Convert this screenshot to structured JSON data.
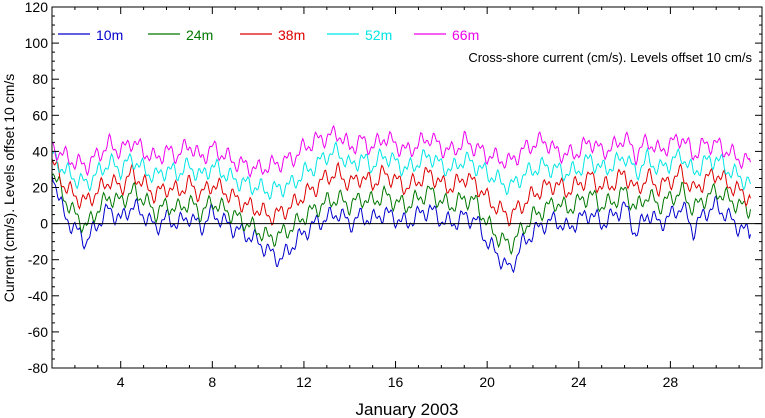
{
  "chart_data": {
    "type": "line",
    "title": "Cross-shore current (cm/s). Levels offset 10 cm/s",
    "xlabel": "January 2003",
    "ylabel": "Current (cm/s). Levels offset 10 cm/s",
    "xlim": [
      1,
      32
    ],
    "ylim": [
      -80,
      120
    ],
    "x_ticks": [
      4,
      8,
      12,
      16,
      20,
      24,
      28
    ],
    "y_ticks": [
      -80,
      -60,
      -40,
      -20,
      0,
      20,
      40,
      60,
      80,
      100,
      120
    ],
    "reference_line": 0,
    "grid": false,
    "legend": "top-left, single row",
    "series": [
      {
        "name": "10m",
        "color": "#0000cc",
        "offset": 0,
        "x": [
          1,
          1.5,
          2,
          2.5,
          3,
          3.5,
          4,
          4.5,
          5,
          5.5,
          6,
          6.5,
          7,
          7.5,
          8,
          8.5,
          9,
          9.5,
          10,
          10.5,
          11,
          11.5,
          12,
          12.5,
          13,
          13.5,
          14,
          14.5,
          15,
          15.5,
          16,
          16.5,
          17,
          17.5,
          18,
          18.5,
          19,
          19.5,
          20,
          20.5,
          21,
          21.5,
          22,
          22.5,
          23,
          23.5,
          24,
          24.5,
          25,
          25.5,
          26,
          26.5,
          27,
          27.5,
          28,
          28.5,
          29,
          29.5,
          30,
          30.5,
          31,
          31.5
        ],
        "values": [
          30,
          5,
          -3,
          -10,
          0,
          8,
          2,
          10,
          5,
          -2,
          3,
          0,
          4,
          -2,
          6,
          1,
          -3,
          -6,
          -10,
          -16,
          -20,
          -12,
          -5,
          0,
          3,
          6,
          0,
          4,
          2,
          6,
          3,
          0,
          5,
          8,
          2,
          0,
          4,
          2,
          -10,
          -18,
          -26,
          -12,
          -5,
          0,
          2,
          -3,
          2,
          6,
          0,
          4,
          10,
          -6,
          6,
          0,
          4,
          10,
          -4,
          6,
          10,
          4,
          -2,
          -6
        ]
      },
      {
        "name": "24m",
        "color": "#007700",
        "offset": 10,
        "x": [
          1,
          1.5,
          2,
          2.5,
          3,
          3.5,
          4,
          4.5,
          5,
          5.5,
          6,
          6.5,
          7,
          7.5,
          8,
          8.5,
          9,
          9.5,
          10,
          10.5,
          11,
          11.5,
          12,
          12.5,
          13,
          13.5,
          14,
          14.5,
          15,
          15.5,
          16,
          16.5,
          17,
          17.5,
          18,
          18.5,
          19,
          19.5,
          20,
          20.5,
          21,
          21.5,
          22,
          22.5,
          23,
          23.5,
          24,
          24.5,
          25,
          25.5,
          26,
          26.5,
          27,
          27.5,
          28,
          28.5,
          29,
          29.5,
          30,
          30.5,
          31,
          31.5
        ],
        "values": [
          30,
          15,
          5,
          -2,
          8,
          15,
          12,
          18,
          14,
          6,
          10,
          8,
          12,
          6,
          12,
          8,
          4,
          0,
          -4,
          -8,
          -6,
          -2,
          4,
          8,
          12,
          14,
          10,
          14,
          12,
          16,
          12,
          10,
          14,
          18,
          12,
          10,
          14,
          12,
          0,
          -8,
          -12,
          -4,
          4,
          8,
          12,
          8,
          12,
          16,
          10,
          12,
          18,
          8,
          16,
          10,
          14,
          18,
          8,
          14,
          18,
          14,
          10,
          8
        ]
      },
      {
        "name": "38m",
        "color": "#dd0000",
        "offset": 20,
        "x": [
          1,
          1.5,
          2,
          2.5,
          3,
          3.5,
          4,
          4.5,
          5,
          5.5,
          6,
          6.5,
          7,
          7.5,
          8,
          8.5,
          9,
          9.5,
          10,
          10.5,
          11,
          11.5,
          12,
          12.5,
          13,
          13.5,
          14,
          14.5,
          15,
          15.5,
          16,
          16.5,
          17,
          17.5,
          18,
          18.5,
          19,
          19.5,
          20,
          20.5,
          21,
          21.5,
          22,
          22.5,
          23,
          23.5,
          24,
          24.5,
          25,
          25.5,
          26,
          26.5,
          27,
          27.5,
          28,
          28.5,
          29,
          29.5,
          30,
          30.5,
          31,
          31.5
        ],
        "values": [
          35,
          22,
          15,
          12,
          18,
          24,
          20,
          28,
          22,
          16,
          20,
          18,
          22,
          16,
          22,
          18,
          14,
          10,
          8,
          4,
          6,
          10,
          16,
          20,
          26,
          28,
          22,
          26,
          22,
          28,
          24,
          20,
          24,
          28,
          22,
          20,
          26,
          22,
          14,
          8,
          4,
          10,
          16,
          20,
          22,
          18,
          22,
          26,
          20,
          22,
          28,
          18,
          26,
          20,
          24,
          28,
          18,
          24,
          28,
          22,
          18,
          14
        ]
      },
      {
        "name": "52m",
        "color": "#00e5e5",
        "offset": 30,
        "x": [
          1,
          1.5,
          2,
          2.5,
          3,
          3.5,
          4,
          4.5,
          5,
          5.5,
          6,
          6.5,
          7,
          7.5,
          8,
          8.5,
          9,
          9.5,
          10,
          10.5,
          11,
          11.5,
          12,
          12.5,
          13,
          13.5,
          14,
          14.5,
          15,
          15.5,
          16,
          16.5,
          17,
          17.5,
          18,
          18.5,
          19,
          19.5,
          20,
          20.5,
          21,
          21.5,
          22,
          22.5,
          23,
          23.5,
          24,
          24.5,
          25,
          25.5,
          26,
          26.5,
          27,
          27.5,
          28,
          28.5,
          29,
          29.5,
          30,
          30.5,
          31,
          31.5
        ],
        "values": [
          38,
          30,
          25,
          22,
          28,
          34,
          30,
          36,
          30,
          26,
          30,
          28,
          32,
          26,
          32,
          28,
          24,
          22,
          20,
          18,
          20,
          22,
          28,
          32,
          38,
          40,
          32,
          36,
          32,
          38,
          34,
          30,
          34,
          38,
          32,
          30,
          36,
          32,
          28,
          24,
          20,
          26,
          30,
          32,
          30,
          28,
          30,
          36,
          30,
          32,
          38,
          28,
          36,
          30,
          34,
          38,
          28,
          34,
          36,
          30,
          26,
          22
        ]
      },
      {
        "name": "66m",
        "color": "#ee00ee",
        "offset": 40,
        "x": [
          1,
          1.5,
          2,
          2.5,
          3,
          3.5,
          4,
          4.5,
          5,
          5.5,
          6,
          6.5,
          7,
          7.5,
          8,
          8.5,
          9,
          9.5,
          10,
          10.5,
          11,
          11.5,
          12,
          12.5,
          13,
          13.5,
          14,
          14.5,
          15,
          15.5,
          16,
          16.5,
          17,
          17.5,
          18,
          18.5,
          19,
          19.5,
          20,
          20.5,
          21,
          21.5,
          22,
          22.5,
          23,
          23.5,
          24,
          24.5,
          25,
          25.5,
          26,
          26.5,
          27,
          27.5,
          28,
          28.5,
          29,
          29.5,
          30,
          30.5,
          31,
          31.5
        ],
        "values": [
          42,
          38,
          34,
          32,
          38,
          44,
          40,
          46,
          40,
          36,
          40,
          38,
          44,
          36,
          42,
          38,
          34,
          32,
          30,
          32,
          34,
          36,
          42,
          46,
          48,
          50,
          42,
          46,
          42,
          48,
          44,
          40,
          44,
          48,
          42,
          40,
          46,
          42,
          38,
          36,
          34,
          40,
          44,
          46,
          40,
          38,
          40,
          46,
          40,
          42,
          48,
          38,
          46,
          40,
          44,
          48,
          38,
          44,
          44,
          40,
          36,
          34
        ]
      }
    ]
  }
}
